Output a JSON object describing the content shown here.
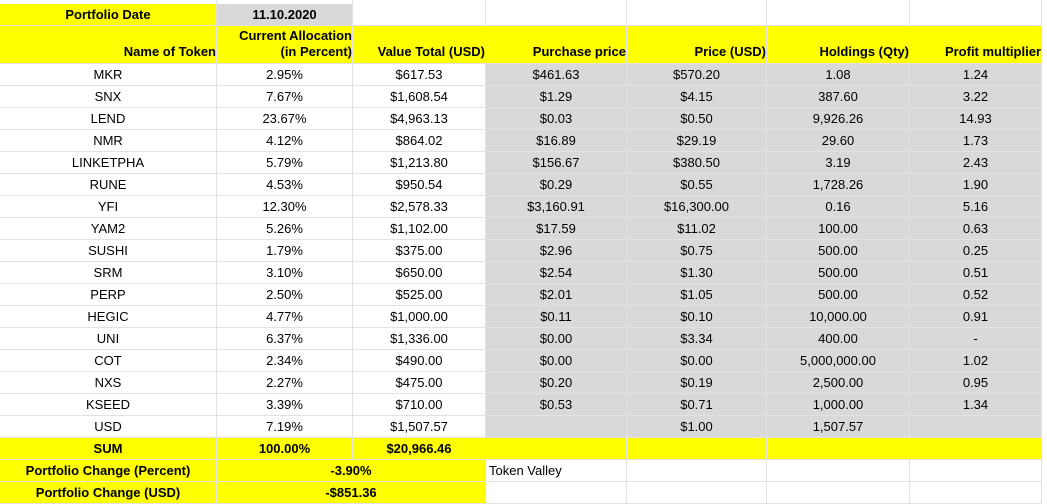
{
  "header": {
    "portfolio_date_label": "Portfolio Date",
    "portfolio_date_value": "11.10.2020",
    "col_name": "Name of Token",
    "col_alloc_1": "Current Allocation",
    "col_alloc_2": "(in Percent)",
    "col_value": "Value Total (USD)",
    "col_purchase": "Purchase price",
    "col_price": "Price (USD)",
    "col_holdings": "Holdings (Qty)",
    "col_profit": "Profit multiplier"
  },
  "rows": [
    {
      "name": "MKR",
      "alloc": "2.95%",
      "value": "$617.53",
      "purchase": "$461.63",
      "price": "$570.20",
      "holdings": "1.08",
      "profit": "1.24"
    },
    {
      "name": "SNX",
      "alloc": "7.67%",
      "value": "$1,608.54",
      "purchase": "$1.29",
      "price": "$4.15",
      "holdings": "387.60",
      "profit": "3.22"
    },
    {
      "name": "LEND",
      "alloc": "23.67%",
      "value": "$4,963.13",
      "purchase": "$0.03",
      "price": "$0.50",
      "holdings": "9,926.26",
      "profit": "14.93"
    },
    {
      "name": "NMR",
      "alloc": "4.12%",
      "value": "$864.02",
      "purchase": "$16.89",
      "price": "$29.19",
      "holdings": "29.60",
      "profit": "1.73"
    },
    {
      "name": "LINKETPHA",
      "alloc": "5.79%",
      "value": "$1,213.80",
      "purchase": "$156.67",
      "price": "$380.50",
      "holdings": "3.19",
      "profit": "2.43"
    },
    {
      "name": "RUNE",
      "alloc": "4.53%",
      "value": "$950.54",
      "purchase": "$0.29",
      "price": "$0.55",
      "holdings": "1,728.26",
      "profit": "1.90"
    },
    {
      "name": "YFI",
      "alloc": "12.30%",
      "value": "$2,578.33",
      "purchase": "$3,160.91",
      "price": "$16,300.00",
      "holdings": "0.16",
      "profit": "5.16"
    },
    {
      "name": "YAM2",
      "alloc": "5.26%",
      "value": "$1,102.00",
      "purchase": "$17.59",
      "price": "$11.02",
      "holdings": "100.00",
      "profit": "0.63"
    },
    {
      "name": "SUSHI",
      "alloc": "1.79%",
      "value": "$375.00",
      "purchase": "$2.96",
      "price": "$0.75",
      "holdings": "500.00",
      "profit": "0.25"
    },
    {
      "name": "SRM",
      "alloc": "3.10%",
      "value": "$650.00",
      "purchase": "$2.54",
      "price": "$1.30",
      "holdings": "500.00",
      "profit": "0.51"
    },
    {
      "name": "PERP",
      "alloc": "2.50%",
      "value": "$525.00",
      "purchase": "$2.01",
      "price": "$1.05",
      "holdings": "500.00",
      "profit": "0.52"
    },
    {
      "name": "HEGIC",
      "alloc": "4.77%",
      "value": "$1,000.00",
      "purchase": "$0.11",
      "price": "$0.10",
      "holdings": "10,000.00",
      "profit": "0.91"
    },
    {
      "name": "UNI",
      "alloc": "6.37%",
      "value": "$1,336.00",
      "purchase": "$0.00",
      "price": "$3.34",
      "holdings": "400.00",
      "profit": "-"
    },
    {
      "name": "COT",
      "alloc": "2.34%",
      "value": "$490.00",
      "purchase": "$0.00",
      "price": "$0.00",
      "holdings": "5,000,000.00",
      "profit": "1.02"
    },
    {
      "name": "NXS",
      "alloc": "2.27%",
      "value": "$475.00",
      "purchase": "$0.20",
      "price": "$0.19",
      "holdings": "2,500.00",
      "profit": "0.95"
    },
    {
      "name": "KSEED",
      "alloc": "3.39%",
      "value": "$710.00",
      "purchase": "$0.53",
      "price": "$0.71",
      "holdings": "1,000.00",
      "profit": "1.34"
    },
    {
      "name": "USD",
      "alloc": "7.19%",
      "value": "$1,507.57",
      "purchase": "",
      "price": "$1.00",
      "holdings": "1,507.57",
      "profit": ""
    }
  ],
  "sum": {
    "label": "SUM",
    "alloc": "100.00%",
    "value": "$20,966.46"
  },
  "change_percent": {
    "label": "Portfolio Change (Percent)",
    "value": "-3.90%"
  },
  "change_usd": {
    "label": "Portfolio Change (USD)",
    "value": "-$851.36"
  },
  "note": "Token Valley",
  "colors": {
    "highlight": "#ffff00",
    "grey": "#d9d9d9",
    "grid": "#e2e2e2"
  }
}
